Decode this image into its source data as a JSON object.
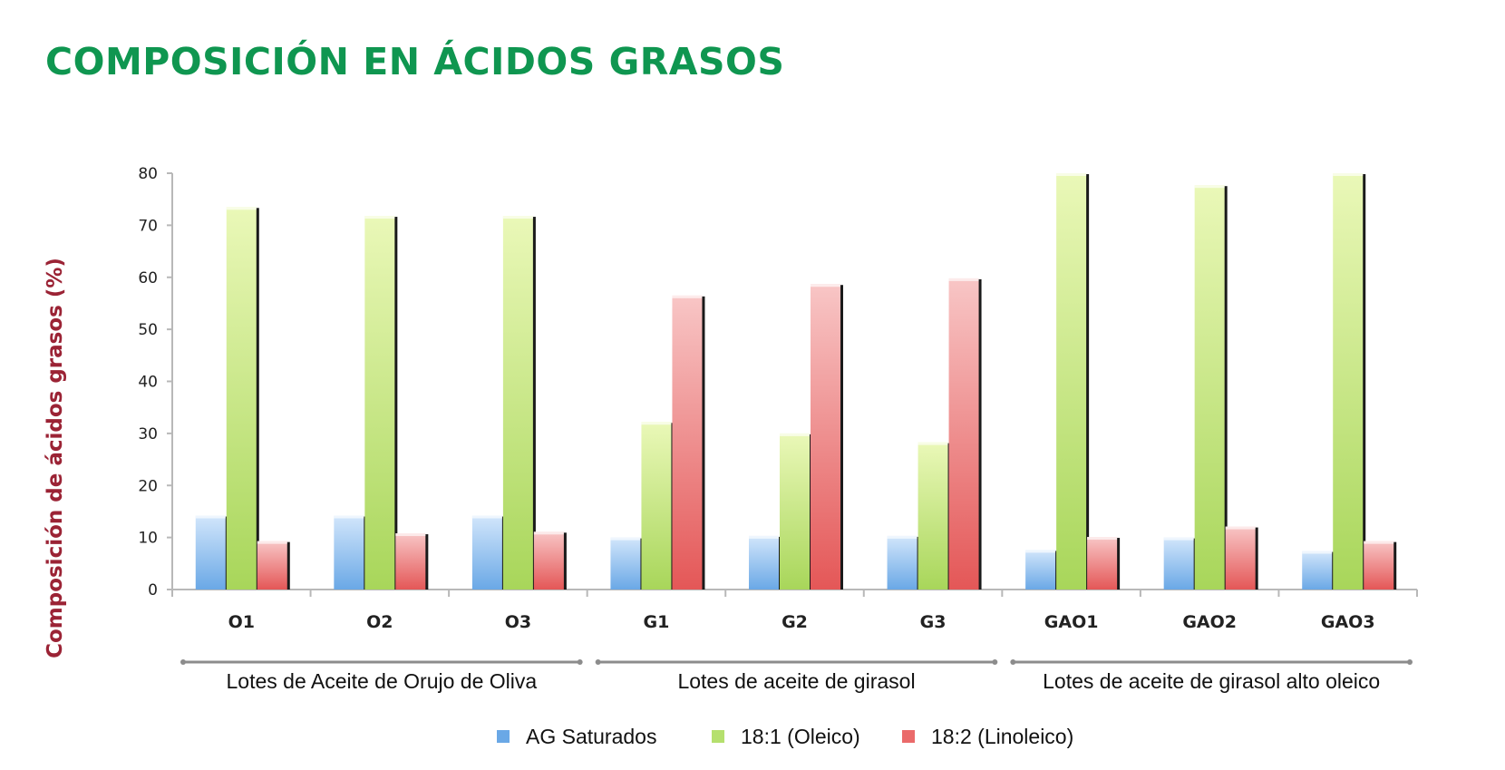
{
  "page": {
    "title": "COMPOSICIÓN EN ÁCIDOS GRASOS"
  },
  "chart_data": {
    "type": "bar",
    "title": "",
    "xlabel": "",
    "ylabel": "Composición de ácidos grasos (%)",
    "ylim": [
      0,
      80
    ],
    "yticks": [
      0,
      10,
      20,
      30,
      40,
      50,
      60,
      70,
      80
    ],
    "grid": false,
    "legend_position": "bottom",
    "categories": [
      "O1",
      "O2",
      "O3",
      "G1",
      "G2",
      "G3",
      "GAO1",
      "GAO2",
      "GAO3"
    ],
    "groups": [
      {
        "label": "Lotes de Aceite de Orujo de Oliva",
        "categories": [
          "O1",
          "O2",
          "O3"
        ]
      },
      {
        "label": "Lotes de aceite de girasol",
        "categories": [
          "G1",
          "G2",
          "G3"
        ]
      },
      {
        "label": "Lotes de aceite de girasol alto oleico",
        "categories": [
          "GAO1",
          "GAO2",
          "GAO3"
        ]
      }
    ],
    "series": [
      {
        "name": "AG Saturados",
        "color": "#6aa8e6",
        "values": [
          14.2,
          14.2,
          14.2,
          10.0,
          10.3,
          10.3,
          7.6,
          10.0,
          7.4
        ]
      },
      {
        "name": "18:1 (Oleico)",
        "color": "#b5e06e",
        "values": [
          73.5,
          71.8,
          71.8,
          32.2,
          30.0,
          28.3,
          80.0,
          77.7,
          80.0
        ]
      },
      {
        "name": "18:2 (Linoleico)",
        "color": "#ea6a6a",
        "values": [
          9.3,
          10.8,
          11.1,
          56.5,
          58.7,
          59.8,
          10.1,
          12.1,
          9.3
        ]
      }
    ]
  }
}
